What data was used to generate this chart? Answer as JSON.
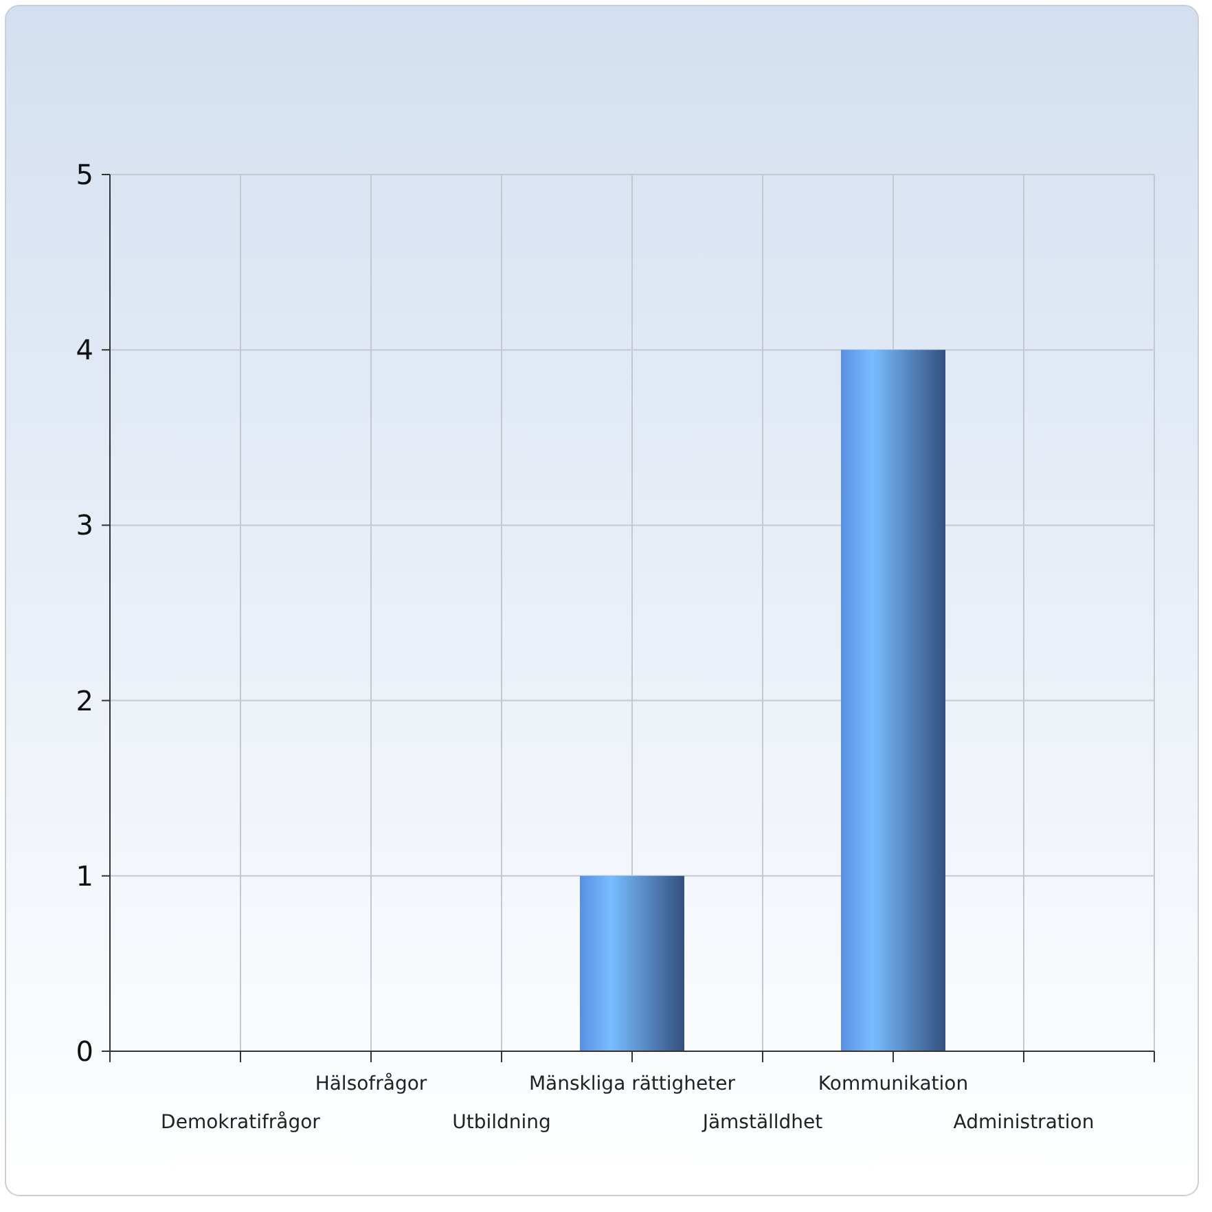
{
  "chart_data": {
    "type": "bar",
    "categories": [
      "Demokratifrågor",
      "Hälsofrågor",
      "Utbildning",
      "Mänskliga rättigheter",
      "Jämställdhet",
      "Kommunikation",
      "Administration"
    ],
    "values": [
      0,
      0,
      0,
      1,
      0,
      4,
      0
    ],
    "color": "#5a8ee0",
    "ylim": [
      0,
      5
    ],
    "yticks": [
      0,
      1,
      2,
      3,
      4,
      5
    ],
    "grid": true
  }
}
